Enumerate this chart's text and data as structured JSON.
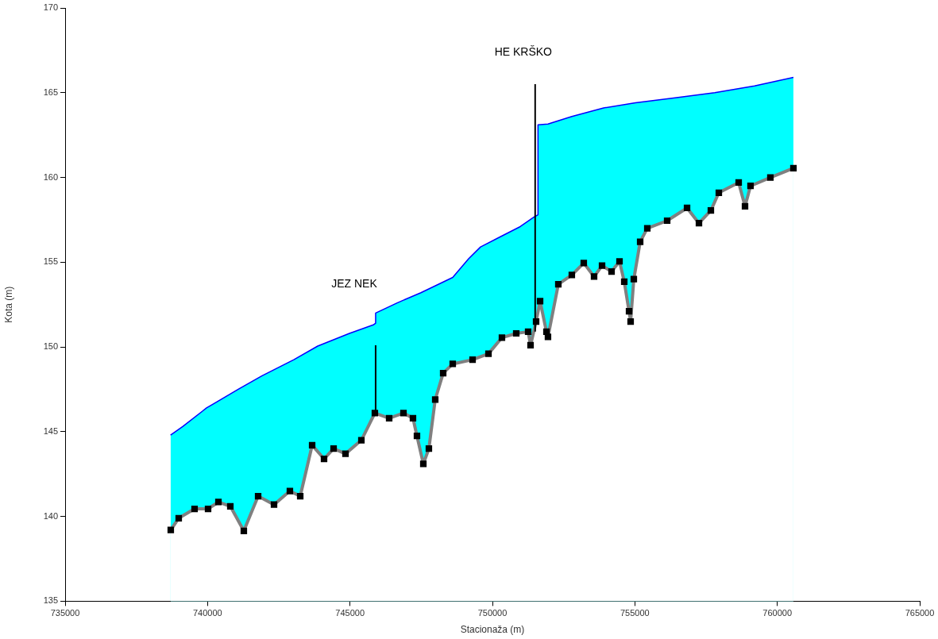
{
  "chart_data": {
    "type": "line",
    "xlabel": "Stacionaža (m)",
    "ylabel": "Kota (m)",
    "xlim": [
      735000,
      765000
    ],
    "xticks": [
      735000,
      740000,
      745000,
      750000,
      755000,
      760000,
      765000
    ],
    "ylim": [
      135,
      170
    ],
    "yticks": [
      135,
      140,
      145,
      150,
      155,
      160,
      165,
      170
    ],
    "grid": false,
    "legend": false,
    "annotations": [
      "JEZ NEK",
      "HE KRŠKO"
    ],
    "series": [
      {
        "type": "area",
        "color": "#00ffff",
        "x": [
          738700,
          739126,
          739963,
          741078,
          741914,
          743029,
          743866,
          744981,
          745818,
          745900,
          745900,
          746655,
          747490,
          748606,
          749163,
          749582,
          750279,
          750976,
          751450,
          751600,
          751600,
          751950,
          752787,
          753902,
          755018,
          756412,
          757806,
          759200,
          760566
        ],
        "values": [
          144.8,
          145.3,
          146.4,
          147.5,
          148.3,
          149.25,
          150.05,
          150.8,
          151.3,
          151.4,
          152.0,
          152.6,
          153.2,
          154.1,
          155.2,
          155.9,
          156.5,
          157.1,
          157.65,
          157.8,
          163.1,
          163.15,
          163.6,
          164.1,
          164.4,
          164.7,
          165.0,
          165.4,
          165.9
        ]
      },
      {
        "type": "area",
        "color": "#808080",
        "marker": "square",
        "x": [
          738708,
          738987,
          739544,
          740018,
          740381,
          740799,
          741273,
          741775,
          742333,
          742890,
          743253,
          743671,
          744089,
          744424,
          744842,
          745399,
          745873,
          746375,
          746877,
          747211,
          747351,
          747574,
          747769,
          747992,
          748271,
          748606,
          749303,
          749861,
          750334,
          750836,
          751254,
          751338,
          751533,
          751673,
          751896,
          751950,
          752313,
          752787,
          753206,
          753568,
          753848,
          754182,
          754461,
          754628,
          754796,
          754851,
          754963,
          755186,
          755437,
          756134,
          756832,
          757250,
          757668,
          757947,
          758644,
          758867,
          759060,
          759757,
          760566
        ],
        "values": [
          139.2,
          139.9,
          140.45,
          140.45,
          140.85,
          140.6,
          139.15,
          141.2,
          140.7,
          141.5,
          141.2,
          144.2,
          143.4,
          144.0,
          143.7,
          144.5,
          146.1,
          145.8,
          146.1,
          145.8,
          144.75,
          143.1,
          144.0,
          146.9,
          148.45,
          149.0,
          149.25,
          149.6,
          150.55,
          150.8,
          150.9,
          150.1,
          151.5,
          152.7,
          150.9,
          150.6,
          153.7,
          154.25,
          154.95,
          154.15,
          154.8,
          154.45,
          155.05,
          153.85,
          152.1,
          151.5,
          154.0,
          156.2,
          157.0,
          157.45,
          158.2,
          157.3,
          158.05,
          159.1,
          159.7,
          158.3,
          159.5,
          160.0,
          160.55
        ]
      },
      {
        "type": "line",
        "color": "#000000",
        "x": [
          745900,
          745900
        ],
        "values": [
          146.1,
          150.1
        ]
      },
      {
        "type": "line",
        "color": "#000000",
        "x": [
          751500,
          751500
        ],
        "values": [
          150.9,
          165.5
        ]
      }
    ]
  }
}
